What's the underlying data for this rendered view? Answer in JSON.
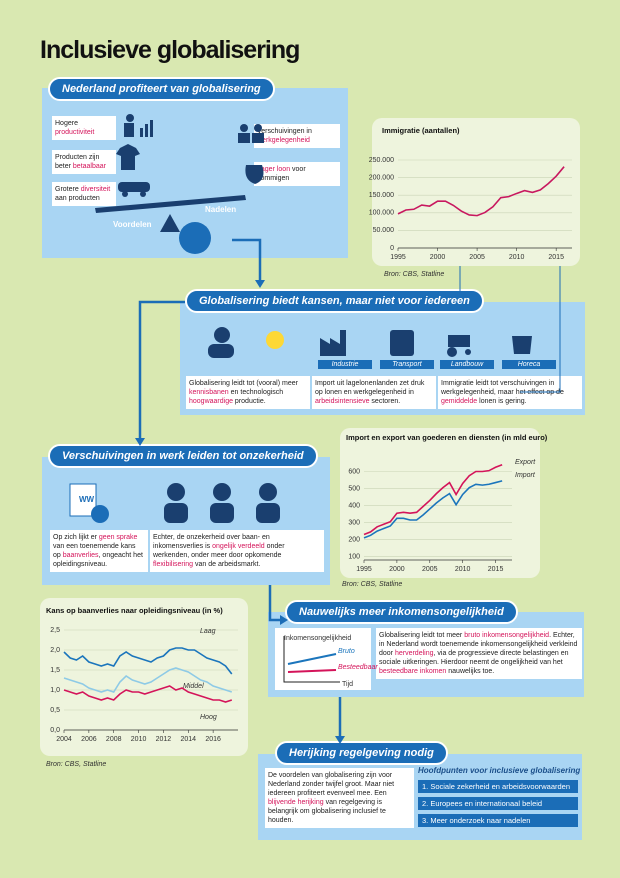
{
  "title": "Inclusieve globalisering",
  "section1": {
    "heading": "Nederland profiteert van globalisering",
    "benefits": [
      [
        "Hogere ",
        {
          "em": "productiviteit"
        }
      ],
      [
        "Producten zijn beter ",
        {
          "em": "betaalbaar"
        }
      ],
      [
        "Grotere ",
        {
          "em": "diversiteit"
        },
        " aan producten"
      ]
    ],
    "drawbacks": [
      [
        "Verschuivingen in ",
        {
          "em": "werkgelegenheid"
        }
      ],
      [
        {
          "em": "Lager loon"
        },
        " voor sommigen"
      ]
    ],
    "left_label": "Voordelen",
    "right_label": "Nadelen"
  },
  "section2": {
    "heading": "Globalisering biedt kansen, maar niet voor iedereen",
    "sectors": [
      "Industrie",
      "Transport",
      "Landbouw",
      "Horeca"
    ],
    "paragraphs": [
      [
        "Globalisering leidt tot (vooral) meer ",
        {
          "em": "kennisbanen"
        },
        " en technologisch ",
        {
          "em": "hoogwaardige"
        },
        " productie."
      ],
      [
        "Import uit lagelonenlanden zet druk op lonen en werkgelegenheid in ",
        {
          "em": "arbeidsintensieve"
        },
        " sectoren."
      ],
      [
        "Immigratie leidt tot verschuivingen in werkgelegenheid, maar het effect op de ",
        {
          "em": "gemiddelde"
        },
        " lonen is gering."
      ]
    ]
  },
  "section3": {
    "heading": "Verschuivingen in werk leiden tot onzekerheid",
    "icon_label": "WW",
    "paragraphs": [
      [
        "Op zich lijkt er ",
        {
          "em": "geen sprake"
        },
        " van een toenemende kans op ",
        {
          "em": "baanverlies"
        },
        ", ongeacht het opleidingsniveau."
      ],
      [
        "Echter, de onzekerheid over baan- en inkomensverlies is ",
        {
          "em": "ongelijk verdeeld"
        },
        " onder werkenden, onder meer door opkomende ",
        {
          "em": "flexibilisering"
        },
        " van de arbeidsmarkt."
      ]
    ]
  },
  "section4": {
    "heading": "Nauwelijks meer inkomensongelijkheid",
    "diagram": {
      "y_label": "Inkomensongelijkheid",
      "x_label": "Tijd",
      "lines": [
        "Bruto",
        "Besteedbaar"
      ]
    },
    "paragraph": [
      "Globalisering leidt tot meer ",
      {
        "em": "bruto inkomensongelijkheid"
      },
      ". Echter, in Nederland wordt toenemende inkomensongelijkheid verkleind door ",
      {
        "em": "herverdeling"
      },
      ", via de progressieve directe belastingen en sociale uitkeringen. Hierdoor neemt de ongelijkheid van het ",
      {
        "em": "besteedbare inkomen"
      },
      " nauwelijks toe."
    ]
  },
  "section5": {
    "heading": "Herijking regelgeving nodig",
    "paragraph": [
      "De voordelen van globalisering zijn voor Nederland zonder twijfel groot. Maar niet iedereen profiteert evenveel mee. Een ",
      {
        "em": "blijvende herijking"
      },
      " van regelgeving is belangrijk om globalisering inclusief te houden."
    ],
    "key_points_title": "Hoofdpunten voor inclusieve globalisering",
    "key_points": [
      "1. Sociale zekerheid en arbeidsvoorwaarden",
      "2. Europees en internationaal beleid",
      "3. Meer onderzoek naar nadelen"
    ]
  },
  "chart_data": [
    {
      "type": "line",
      "title": "Immigratie (aantallen)",
      "x": [
        1995,
        1996,
        1997,
        1998,
        1999,
        2000,
        2001,
        2002,
        2003,
        2004,
        2005,
        2006,
        2007,
        2008,
        2009,
        2010,
        2011,
        2012,
        2013,
        2014,
        2015,
        2016
      ],
      "values": [
        97000,
        108000,
        110000,
        122000,
        119000,
        133000,
        133000,
        121000,
        105000,
        94000,
        92000,
        101000,
        117000,
        143000,
        146000,
        155000,
        163000,
        158000,
        165000,
        183000,
        204000,
        231000
      ],
      "color": "#c8185f",
      "xlim": [
        1995,
        2017
      ],
      "ylim": [
        0,
        250000
      ],
      "xticks": [
        1995,
        2000,
        2005,
        2010,
        2015
      ],
      "yticks": [
        0,
        {
          "value": 50000,
          "label": "50.000"
        },
        {
          "value": 100000,
          "label": "100.000"
        },
        {
          "value": 150000,
          "label": "150.000"
        },
        {
          "value": 200000,
          "label": "200.000"
        },
        {
          "value": 250000,
          "label": "250.000"
        }
      ],
      "grid": true,
      "source": "Bron: CBS, Statline"
    },
    {
      "type": "line",
      "title": "Import en export van goederen en diensten (in mld euro)",
      "x": [
        1995,
        1996,
        1997,
        1998,
        1999,
        2000,
        2001,
        2002,
        2003,
        2004,
        2005,
        2006,
        2007,
        2008,
        2009,
        2010,
        2011,
        2012,
        2013,
        2014,
        2015,
        2016
      ],
      "series": [
        {
          "name": "Export",
          "color": "#d4145a",
          "values": [
            230,
            245,
            275,
            290,
            305,
            355,
            360,
            355,
            360,
            395,
            430,
            470,
            505,
            535,
            465,
            530,
            575,
            600,
            600,
            605,
            625,
            640
          ]
        },
        {
          "name": "Import",
          "color": "#1b75bc",
          "values": [
            210,
            225,
            250,
            265,
            280,
            325,
            325,
            315,
            315,
            345,
            380,
            415,
            445,
            470,
            405,
            465,
            505,
            525,
            520,
            525,
            535,
            545
          ]
        }
      ],
      "xlim": [
        1995,
        2017.5
      ],
      "ylim": [
        80,
        650
      ],
      "xticks": [
        1995,
        2000,
        2005,
        2010,
        2015
      ],
      "yticks": [
        100,
        200,
        300,
        400,
        500,
        600
      ],
      "grid": true,
      "source": "Bron: CBS, Statline"
    },
    {
      "type": "line",
      "title": "Kans op baanverlies naar opleidingsniveau (in %)",
      "x": [
        2004,
        2004.5,
        2005,
        2005.5,
        2006,
        2006.5,
        2007,
        2007.5,
        2008,
        2008.5,
        2009,
        2009.5,
        2010,
        2010.5,
        2011,
        2011.5,
        2012,
        2012.5,
        2013,
        2013.5,
        2014,
        2014.5,
        2015,
        2015.5,
        2016,
        2016.5,
        2017,
        2017.5
      ],
      "series": [
        {
          "name": "Laag",
          "color": "#1b75bc",
          "values": [
            1.95,
            1.8,
            1.75,
            1.85,
            1.7,
            1.65,
            1.6,
            1.65,
            1.6,
            1.85,
            1.95,
            1.85,
            1.8,
            1.75,
            1.7,
            1.8,
            1.85,
            2.0,
            2.05,
            2.05,
            2.0,
            2.0,
            1.9,
            1.8,
            1.75,
            1.7,
            1.6,
            1.4
          ]
        },
        {
          "name": "Middel",
          "color": "#8ecae6",
          "values": [
            1.3,
            1.25,
            1.2,
            1.15,
            1.05,
            1.0,
            0.95,
            1.0,
            0.95,
            1.2,
            1.35,
            1.25,
            1.2,
            1.15,
            1.2,
            1.3,
            1.4,
            1.5,
            1.55,
            1.5,
            1.45,
            1.35,
            1.25,
            1.2,
            1.1,
            1.05,
            1.0,
            0.95
          ]
        },
        {
          "name": "Hoog",
          "color": "#d4145a",
          "values": [
            1.0,
            0.95,
            0.9,
            0.95,
            0.85,
            0.8,
            0.75,
            0.8,
            0.75,
            0.9,
            1.0,
            0.95,
            0.95,
            0.9,
            0.95,
            1.0,
            1.05,
            1.1,
            1.0,
            1.05,
            0.95,
            0.9,
            0.85,
            0.8,
            0.75,
            0.75,
            0.7,
            0.75
          ]
        }
      ],
      "xlim": [
        2004,
        2018
      ],
      "ylim": [
        0,
        2.5
      ],
      "xticks": [
        2004,
        2006,
        2008,
        2010,
        2012,
        2014,
        2016
      ],
      "yticks": [
        {
          "value": 0,
          "label": "0,0"
        },
        {
          "value": 0.5,
          "label": "0,5"
        },
        {
          "value": 1,
          "label": "1,0"
        },
        {
          "value": 1.5,
          "label": "1,5"
        },
        {
          "value": 2,
          "label": "2,0"
        },
        {
          "value": 2.5,
          "label": "2,5"
        }
      ],
      "grid": true,
      "source": "Bron: CBS, Statline"
    }
  ]
}
